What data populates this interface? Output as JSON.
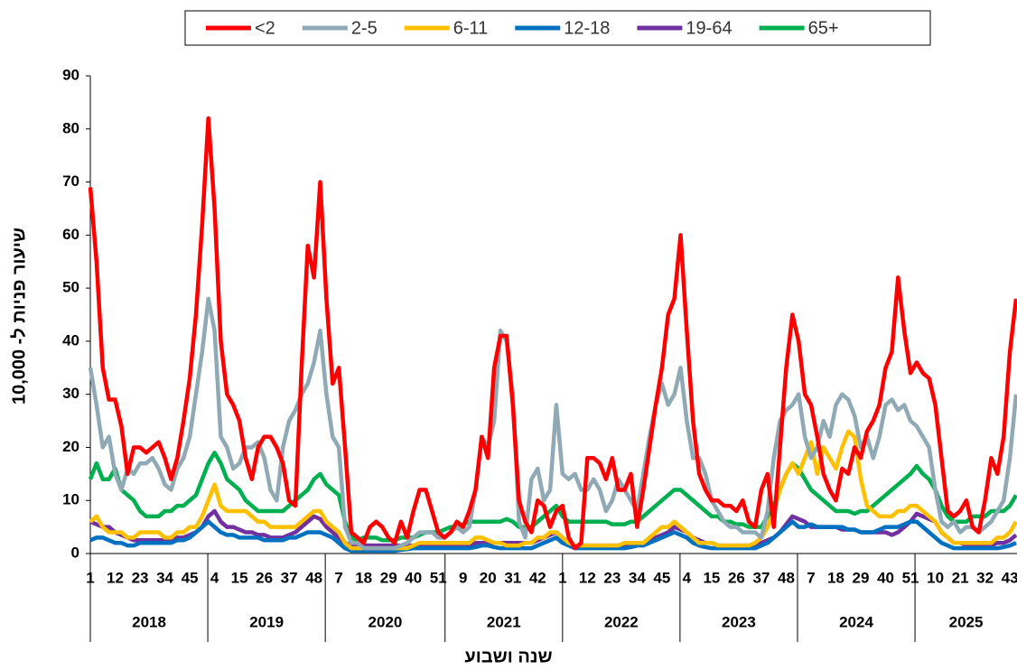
{
  "chart_data": {
    "type": "line",
    "y_label": "שיעור פניות ל- 10,000",
    "x_label": "שנה ושבוע",
    "categories": [
      "1",
      null,
      null,
      null,
      "12",
      null,
      null,
      null,
      "23",
      null,
      null,
      null,
      "34",
      null,
      null,
      null,
      "45",
      null,
      null,
      null,
      "4",
      null,
      null,
      null,
      "15",
      null,
      null,
      null,
      "26",
      null,
      null,
      null,
      "37",
      null,
      null,
      null,
      "48",
      null,
      null,
      null,
      "7",
      null,
      null,
      null,
      "18",
      null,
      null,
      null,
      "29",
      null,
      null,
      null,
      "40",
      null,
      null,
      null,
      "51",
      null,
      null,
      null,
      "9",
      null,
      null,
      null,
      "20",
      null,
      null,
      null,
      "31",
      null,
      null,
      null,
      "42",
      null,
      null,
      null,
      "1",
      null,
      null,
      null,
      "12",
      null,
      null,
      null,
      "23",
      null,
      null,
      null,
      "34",
      null,
      null,
      null,
      "45",
      null,
      null,
      null,
      "4",
      null,
      null,
      null,
      "15",
      null,
      null,
      null,
      "26",
      null,
      null,
      null,
      "37",
      null,
      null,
      null,
      "48",
      null,
      null,
      null,
      "7",
      null,
      null,
      null,
      "18",
      null,
      null,
      null,
      "29",
      null,
      null,
      null,
      "40",
      null,
      null,
      null,
      "51",
      null,
      null,
      null,
      "10",
      null,
      null,
      null,
      "21",
      null,
      null,
      null,
      "32",
      null,
      null,
      null,
      "43",
      null
    ],
    "years": [
      "2018",
      "2019",
      "2020",
      "2021",
      "2022",
      "2023",
      "2024",
      "2025"
    ],
    "ylim": [
      0,
      90
    ],
    "yticks": [
      0,
      10,
      20,
      30,
      40,
      50,
      60,
      70,
      80,
      90
    ],
    "grid": false,
    "legend": "top",
    "series": [
      {
        "name": "<2",
        "color": "#ff0000",
        "values": [
          69,
          55,
          35,
          29,
          29,
          24,
          15,
          20,
          20,
          19,
          20,
          21,
          18,
          14,
          18,
          25,
          33,
          45,
          62,
          82,
          65,
          40,
          30,
          28,
          25,
          18,
          14,
          20,
          22,
          22,
          20,
          17,
          10,
          9,
          35,
          58,
          52,
          70,
          48,
          32,
          35,
          20,
          4,
          3,
          2,
          5,
          6,
          5,
          3,
          2,
          6,
          3,
          8,
          12,
          12,
          8,
          4,
          3,
          4,
          6,
          5,
          8,
          12,
          22,
          18,
          35,
          41,
          41,
          28,
          10,
          6,
          4,
          10,
          9,
          5,
          8,
          9,
          3,
          1,
          2,
          18,
          18,
          17,
          14,
          18,
          12,
          12,
          15,
          5,
          12,
          20,
          28,
          35,
          45,
          48,
          60,
          42,
          25,
          15,
          12,
          10,
          10,
          9,
          9,
          8,
          10,
          6,
          5,
          12,
          15,
          5,
          20,
          35,
          45,
          40,
          30,
          28,
          22,
          15,
          12,
          10,
          16,
          15,
          20,
          18,
          23,
          25,
          28,
          35,
          38,
          52,
          42,
          34,
          36,
          34,
          33,
          28,
          18,
          8,
          7,
          8,
          10,
          5,
          4,
          10,
          18,
          15,
          22,
          38,
          48
        ]
      },
      {
        "name": "2-5",
        "color": "#8faab5",
        "values": [
          35,
          28,
          20,
          22,
          15,
          12,
          16,
          15,
          17,
          17,
          18,
          16,
          13,
          12,
          16,
          18,
          22,
          30,
          38,
          48,
          42,
          22,
          20,
          16,
          17,
          20,
          20,
          21,
          18,
          12,
          10,
          20,
          25,
          27,
          30,
          32,
          36,
          42,
          30,
          22,
          20,
          5,
          2,
          2,
          1,
          1,
          1,
          1,
          1,
          1,
          1.5,
          2,
          3,
          4,
          4,
          4,
          3,
          3,
          4,
          5,
          4,
          5,
          12,
          22,
          20,
          25,
          42,
          40,
          30,
          6,
          3,
          14,
          16,
          10,
          12,
          28,
          15,
          14,
          15,
          12,
          12,
          14,
          12,
          8,
          10,
          14,
          12,
          10,
          8,
          15,
          22,
          28,
          32,
          28,
          30,
          35,
          25,
          18,
          18,
          15,
          10,
          8,
          6,
          5,
          5,
          4,
          4,
          4,
          3,
          8,
          18,
          25,
          27,
          28,
          30,
          22,
          18,
          20,
          25,
          22,
          28,
          30,
          29,
          26,
          20,
          22,
          18,
          22,
          28,
          29,
          27,
          28,
          25,
          24,
          22,
          20,
          12,
          6,
          5,
          6,
          4,
          5,
          5,
          4,
          5,
          6,
          8,
          10,
          18,
          30
        ]
      },
      {
        "name": "6-11",
        "color": "#ffc000",
        "values": [
          6,
          7,
          5,
          4,
          4,
          4,
          3,
          3,
          4,
          4,
          4,
          4,
          3,
          3,
          4,
          4,
          5,
          5,
          7,
          10,
          13,
          9,
          8,
          8,
          8,
          8,
          7,
          6,
          6,
          5,
          5,
          5,
          5,
          5,
          6,
          7,
          8,
          8,
          6,
          5,
          4,
          2,
          1,
          1,
          1,
          1,
          1,
          1,
          1,
          1,
          1,
          1,
          1.5,
          2,
          2,
          2,
          2,
          2,
          2,
          2,
          2,
          2,
          3,
          3,
          2.5,
          2,
          2,
          1.5,
          1.5,
          1.5,
          2,
          2,
          3,
          3,
          4,
          4,
          3,
          2,
          1.5,
          1.5,
          1.5,
          1.5,
          1.5,
          1.5,
          1.5,
          1.5,
          2,
          2,
          2,
          2,
          3,
          4,
          5,
          5,
          6,
          5,
          4,
          3,
          2,
          2,
          2,
          1.5,
          1.5,
          1.5,
          1.5,
          1.5,
          1.5,
          2,
          3,
          5,
          8,
          12,
          15,
          17,
          15,
          18,
          21,
          15,
          20,
          18,
          16,
          20,
          23,
          22,
          14,
          9,
          8,
          7,
          7,
          7,
          8,
          8,
          9,
          9,
          8,
          7,
          6,
          4,
          3,
          2,
          2,
          2,
          2,
          2,
          2,
          2,
          3,
          3,
          4,
          6
        ]
      },
      {
        "name": "12-18",
        "color": "#0070c0",
        "values": [
          2.5,
          3,
          3,
          2.5,
          2,
          2,
          1.5,
          1.5,
          2,
          2,
          2,
          2,
          2,
          2,
          2.5,
          2.5,
          3,
          4,
          5,
          6,
          5,
          4,
          3.5,
          3.5,
          3,
          3,
          3,
          3,
          2.5,
          2.5,
          2.5,
          2.5,
          3,
          3,
          3.5,
          4,
          4,
          4,
          3.5,
          3,
          2,
          1,
          0.5,
          0.5,
          0.5,
          0.5,
          0.5,
          0.5,
          0.5,
          0.5,
          0.7,
          0.8,
          1,
          1,
          1,
          1,
          1,
          1,
          1,
          1,
          1,
          1,
          1.2,
          1.5,
          1.5,
          1.2,
          1,
          1,
          1,
          1,
          1,
          1,
          1.5,
          2,
          2.5,
          3,
          2,
          1.5,
          1,
          1,
          1,
          1,
          1,
          1,
          1,
          1,
          1,
          1.2,
          1.5,
          1.5,
          2,
          2.5,
          3,
          3.5,
          4,
          3.5,
          3,
          2,
          1.5,
          1.2,
          1,
          1,
          1,
          1,
          1,
          1,
          1,
          1,
          1.5,
          2,
          3,
          4,
          5,
          6,
          5,
          5,
          5.5,
          5,
          5,
          5,
          5,
          5,
          4.5,
          4.5,
          4,
          4,
          4,
          4.5,
          5,
          5,
          5,
          5.5,
          6,
          6,
          5,
          4,
          3,
          2,
          1.5,
          1,
          1,
          1,
          1,
          1,
          1,
          1,
          1,
          1.2,
          1.5,
          2
        ]
      },
      {
        "name": "19-64",
        "color": "#7030a0",
        "values": [
          6,
          5.5,
          5,
          5,
          4,
          3.5,
          3,
          2.5,
          2.5,
          2.5,
          2.5,
          2.5,
          2.5,
          2.5,
          3,
          3,
          3.5,
          4,
          5,
          7,
          8,
          6,
          5,
          5,
          4.5,
          4,
          4,
          3.5,
          3.5,
          3,
          3,
          3,
          3.5,
          4,
          5,
          6,
          7,
          6.5,
          5,
          4,
          3,
          2,
          1.5,
          1.5,
          1.5,
          1.5,
          1.5,
          1.5,
          1.5,
          1.5,
          1.5,
          1.5,
          1.5,
          1.5,
          1.5,
          1.5,
          1.5,
          1.5,
          1.5,
          1.5,
          1.5,
          1.5,
          2,
          2,
          2,
          2,
          2,
          2,
          2,
          2,
          2,
          2,
          2.5,
          3,
          3.5,
          4,
          3,
          2,
          1.5,
          1.5,
          1.5,
          1.5,
          1.5,
          1.5,
          1.5,
          1.5,
          1.5,
          1.5,
          2,
          2,
          2.5,
          3,
          3.5,
          4,
          5,
          4.5,
          4,
          3,
          2.5,
          2,
          2,
          1.5,
          1.5,
          1.5,
          1.5,
          1.5,
          1.5,
          1.5,
          2,
          2.5,
          3,
          4,
          5.5,
          7,
          6.5,
          6,
          5,
          5,
          5,
          5,
          5,
          4.5,
          4.5,
          4.5,
          4,
          4,
          4,
          4,
          4,
          3.5,
          4,
          5,
          6,
          7.5,
          7,
          6.5,
          6,
          4,
          3,
          2,
          2,
          1.5,
          1.5,
          1.5,
          1.5,
          1.5,
          2,
          2,
          2.5,
          3.5
        ]
      },
      {
        "name": "65+",
        "color": "#00b050",
        "values": [
          14,
          17,
          14,
          14,
          16,
          12,
          11,
          10,
          8,
          7,
          7,
          7,
          8,
          8,
          9,
          9,
          10,
          11,
          14,
          17,
          19,
          17,
          14,
          13,
          12,
          10,
          9,
          8,
          8,
          8,
          8,
          8,
          9,
          10,
          11,
          12,
          14,
          15,
          13,
          12,
          11,
          6,
          3,
          2.5,
          3,
          3,
          3,
          2.5,
          2.5,
          2.5,
          3,
          3,
          3,
          3.5,
          4,
          4,
          4,
          4.5,
          5,
          5,
          5.5,
          6,
          6,
          6,
          6,
          6,
          6,
          6.5,
          6,
          5,
          5,
          5,
          6,
          7,
          8,
          9,
          7,
          6,
          6,
          6,
          6,
          6,
          6,
          6,
          5.5,
          5.5,
          5.5,
          6,
          6,
          7,
          8,
          9,
          10,
          11,
          12,
          12,
          11,
          10,
          9,
          8,
          7,
          7,
          6,
          6,
          5.5,
          5.5,
          5,
          5,
          5,
          7,
          9,
          12,
          15,
          17,
          16,
          14,
          12,
          11,
          10,
          9,
          8,
          8,
          8,
          7.5,
          8,
          8,
          9,
          10,
          11,
          12,
          13,
          14,
          15,
          16.5,
          15,
          14,
          12,
          9,
          7,
          6,
          6,
          6,
          7,
          7,
          7,
          8,
          8,
          8,
          9,
          11
        ]
      }
    ]
  }
}
